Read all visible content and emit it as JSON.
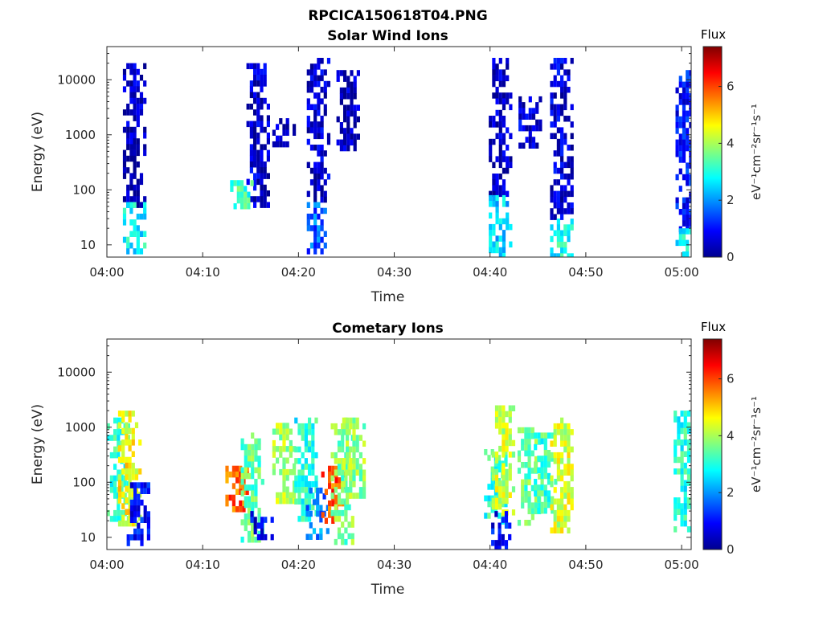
{
  "figure_title": "RPCICA150618T04.PNG",
  "colormap": [
    "#00008f",
    "#0000ff",
    "#0080ff",
    "#00ffff",
    "#80ff80",
    "#ffff00",
    "#ff8000",
    "#ff0000",
    "#800000"
  ],
  "chart_data": [
    {
      "type": "heatmap",
      "title": "Solar Wind Ions",
      "xlabel": "Time",
      "ylabel": "Energy (eV)",
      "y_scale": "log",
      "ylim": [
        6,
        40000
      ],
      "xlim": [
        "04:00",
        "05:01"
      ],
      "x_ticks": [
        "04:00",
        "04:10",
        "04:20",
        "04:30",
        "04:40",
        "04:50",
        "05:00"
      ],
      "y_ticks": [
        "10",
        "100",
        "1000",
        "10000"
      ],
      "colorbar": {
        "label": "Flux",
        "units": "eV⁻¹cm⁻²sr⁻¹s⁻¹",
        "range": [
          0,
          7.4
        ],
        "ticks": [
          "0",
          "2",
          "4",
          "6"
        ]
      },
      "blobs": [
        {
          "t": "04:02.9",
          "e_lo": 60,
          "e_hi": 20000,
          "flux": 0.4
        },
        {
          "t": "04:02.9",
          "e_lo": 7,
          "e_hi": 60,
          "flux": 2.8
        },
        {
          "t": "04:15.8",
          "e_lo": 50,
          "e_hi": 20000,
          "flux": 0.5
        },
        {
          "t": "04:14.1",
          "e_lo": 50,
          "e_hi": 150,
          "flux": 3.2
        },
        {
          "t": "04:18.5",
          "e_lo": 700,
          "e_hi": 2000,
          "flux": 0.3
        },
        {
          "t": "04:22.1",
          "e_lo": 60,
          "e_hi": 25000,
          "flux": 0.5
        },
        {
          "t": "04:22.1",
          "e_lo": 7,
          "e_hi": 60,
          "flux": 1.6
        },
        {
          "t": "04:25.2",
          "e_lo": 600,
          "e_hi": 15000,
          "flux": 0.4
        },
        {
          "t": "04:41.1",
          "e_lo": 80,
          "e_hi": 25000,
          "flux": 0.4
        },
        {
          "t": "04:41.1",
          "e_lo": 7,
          "e_hi": 80,
          "flux": 2.5
        },
        {
          "t": "04:44.2",
          "e_lo": 700,
          "e_hi": 5000,
          "flux": 0.6
        },
        {
          "t": "04:47.5",
          "e_lo": 30,
          "e_hi": 25000,
          "flux": 0.6
        },
        {
          "t": "04:47.5",
          "e_lo": 7,
          "e_hi": 30,
          "flux": 2.9
        },
        {
          "t": "05:00.6",
          "e_lo": 20,
          "e_hi": 15000,
          "flux": 1.0
        },
        {
          "t": "05:00.6",
          "e_lo": 7,
          "e_hi": 20,
          "flux": 2.9
        }
      ]
    },
    {
      "type": "heatmap",
      "title": "Cometary Ions",
      "xlabel": "Time",
      "ylabel": "Energy (eV)",
      "y_scale": "log",
      "ylim": [
        6,
        40000
      ],
      "xlim": [
        "04:00",
        "05:01"
      ],
      "x_ticks": [
        "04:00",
        "04:10",
        "04:20",
        "04:30",
        "04:40",
        "04:50",
        "05:00"
      ],
      "y_ticks": [
        "10",
        "100",
        "1000",
        "10000"
      ],
      "colorbar": {
        "label": "Flux",
        "units": "eV⁻¹cm⁻²sr⁻¹s⁻¹",
        "range": [
          0,
          7.4
        ],
        "ticks": [
          "0",
          "2",
          "4",
          "6"
        ]
      },
      "blobs": [
        {
          "t": "04:01.2",
          "e_lo": 20,
          "e_hi": 1500,
          "flux": 3.2
        },
        {
          "t": "04:02.4",
          "e_lo": 20,
          "e_hi": 2000,
          "flux": 4.6
        },
        {
          "t": "04:03.3",
          "e_lo": 7,
          "e_hi": 100,
          "flux": 1.0
        },
        {
          "t": "04:13.6",
          "e_lo": 30,
          "e_hi": 200,
          "flux": 5.8
        },
        {
          "t": "04:15.2",
          "e_lo": 10,
          "e_hi": 800,
          "flux": 3.5
        },
        {
          "t": "04:16.2",
          "e_lo": 10,
          "e_hi": 30,
          "flux": 0.8
        },
        {
          "t": "04:18.5",
          "e_lo": 50,
          "e_hi": 1200,
          "flux": 4.0
        },
        {
          "t": "04:20.8",
          "e_lo": 20,
          "e_hi": 1500,
          "flux": 3.0
        },
        {
          "t": "04:22.0",
          "e_lo": 10,
          "e_hi": 80,
          "flux": 1.8
        },
        {
          "t": "04:23.6",
          "e_lo": 20,
          "e_hi": 200,
          "flux": 5.9
        },
        {
          "t": "04:24.6",
          "e_lo": 8,
          "e_hi": 1500,
          "flux": 3.6
        },
        {
          "t": "04:25.8",
          "e_lo": 40,
          "e_hi": 1500,
          "flux": 3.8
        },
        {
          "t": "04:40.6",
          "e_lo": 20,
          "e_hi": 400,
          "flux": 3.1
        },
        {
          "t": "04:41.4",
          "e_lo": 30,
          "e_hi": 2500,
          "flux": 4.2
        },
        {
          "t": "04:41.0",
          "e_lo": 7,
          "e_hi": 30,
          "flux": 0.9
        },
        {
          "t": "04:44.1",
          "e_lo": 20,
          "e_hi": 1000,
          "flux": 3.5
        },
        {
          "t": "04:45.8",
          "e_lo": 30,
          "e_hi": 800,
          "flux": 3.2
        },
        {
          "t": "04:47.5",
          "e_lo": 15,
          "e_hi": 1500,
          "flux": 4.3
        },
        {
          "t": "05:00.4",
          "e_lo": 15,
          "e_hi": 2000,
          "flux": 3.0
        }
      ]
    }
  ]
}
